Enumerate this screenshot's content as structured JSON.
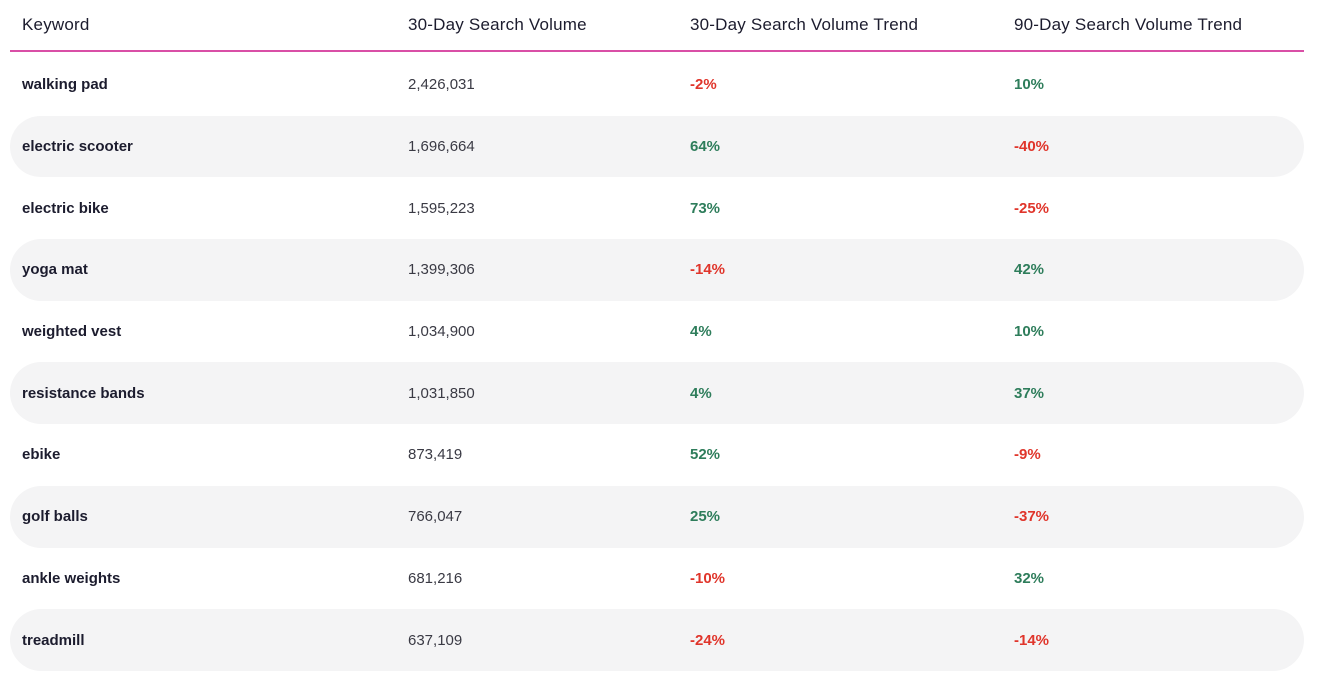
{
  "table": {
    "headers": {
      "keyword": "Keyword",
      "volume": "30-Day Search Volume",
      "trend30": "30-Day Search Volume Trend",
      "trend90": "90-Day Search Volume Trend"
    },
    "rows": [
      {
        "keyword": "walking pad",
        "volume": "2,426,031",
        "trend30": "-2%",
        "trend90": "10%"
      },
      {
        "keyword": "electric scooter",
        "volume": "1,696,664",
        "trend30": "64%",
        "trend90": "-40%"
      },
      {
        "keyword": "electric bike",
        "volume": "1,595,223",
        "trend30": "73%",
        "trend90": "-25%"
      },
      {
        "keyword": "yoga mat",
        "volume": "1,399,306",
        "trend30": "-14%",
        "trend90": "42%"
      },
      {
        "keyword": "weighted vest",
        "volume": "1,034,900",
        "trend30": "4%",
        "trend90": "10%"
      },
      {
        "keyword": "resistance bands",
        "volume": "1,031,850",
        "trend30": "4%",
        "trend90": "37%"
      },
      {
        "keyword": "ebike",
        "volume": "873,419",
        "trend30": "52%",
        "trend90": "-9%"
      },
      {
        "keyword": "golf balls",
        "volume": "766,047",
        "trend30": "25%",
        "trend90": "-37%"
      },
      {
        "keyword": "ankle weights",
        "volume": "681,216",
        "trend30": "-10%",
        "trend90": "32%"
      },
      {
        "keyword": "treadmill",
        "volume": "637,109",
        "trend30": "-24%",
        "trend90": "-14%"
      }
    ]
  },
  "colors": {
    "header_rule": "#d94fa6",
    "positive": "#2e7d5b",
    "negative": "#e0352b",
    "row_stripe": "#f4f4f5"
  }
}
